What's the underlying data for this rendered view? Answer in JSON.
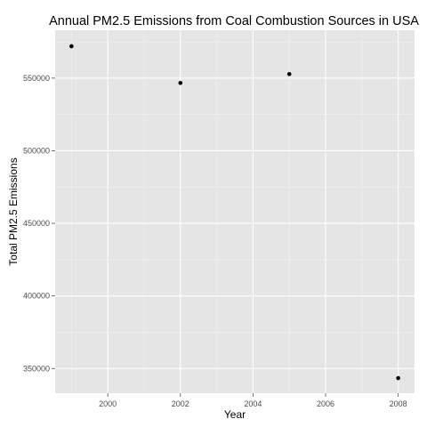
{
  "chart_data": {
    "type": "scatter",
    "title": "Annual PM2.5 Emissions from Coal Combustion Sources in USA",
    "xlabel": "Year",
    "ylabel": "Total PM2.5 Emissions",
    "x_ticks": [
      2000,
      2002,
      2004,
      2006,
      2008
    ],
    "y_ticks": [
      350000,
      400000,
      450000,
      500000,
      550000
    ],
    "x_tick_labels": [
      "2000",
      "2002",
      "2004",
      "2006",
      "2008"
    ],
    "y_tick_labels": [
      "350000",
      "400000",
      "450000",
      "500000",
      "550000"
    ],
    "xlim": [
      1998.55,
      2008.45
    ],
    "ylim": [
      333000,
      583000
    ],
    "grid": true,
    "background": "#e5e5e5",
    "point_color": "#000000",
    "x": [
      1999,
      2002,
      2005,
      2008
    ],
    "y": [
      572000,
      546700,
      552800,
      343400
    ]
  }
}
